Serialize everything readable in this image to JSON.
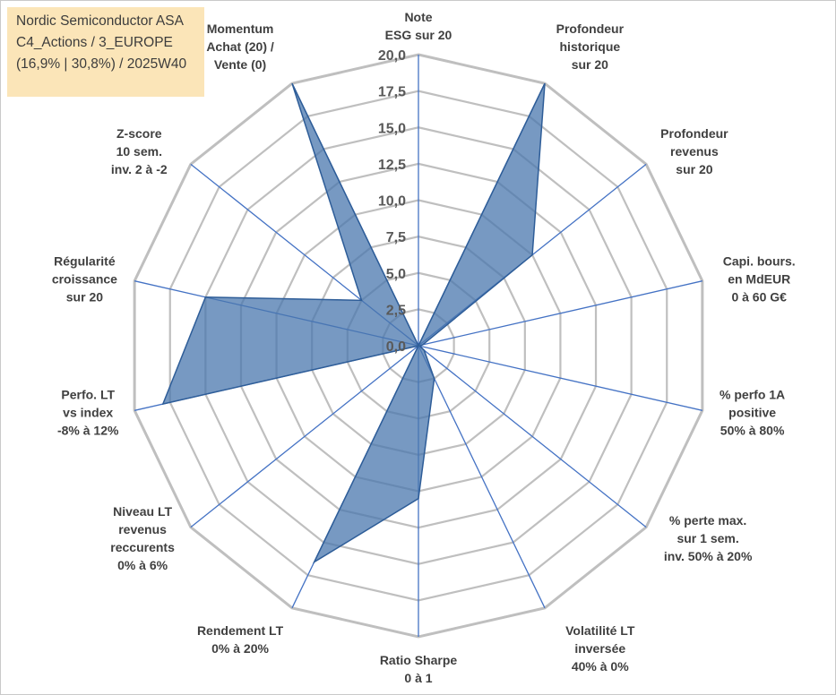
{
  "info": {
    "line1": "Nordic Semiconductor ASA",
    "line2": "C4_Actions / 3_EUROPE",
    "line3": "(16,9% | 30,8%) / 2025W40"
  },
  "chart_data": {
    "type": "radar",
    "r_min": 0,
    "r_max": 20,
    "r_ticks": [
      "0,0",
      "2,5",
      "5,0",
      "7,5",
      "10,0",
      "12,5",
      "15,0",
      "17,5",
      "20,0"
    ],
    "grid": true,
    "categories": [
      [
        "Note",
        "ESG sur 20"
      ],
      [
        "Profondeur",
        "historique",
        "sur 20"
      ],
      [
        "Profondeur",
        "revenus",
        "sur 20"
      ],
      [
        "Capi. bours.",
        "en MdEUR",
        "0 à 60 G€"
      ],
      [
        "% perfo 1A",
        "positive",
        "50% à 80%"
      ],
      [
        "% perte max.",
        "sur 1 sem.",
        "inv. 50% à 20%"
      ],
      [
        "Volatilité LT",
        "inversée",
        "40% à 0%"
      ],
      [
        "Ratio Sharpe",
        "0 à 1"
      ],
      [
        "Rendement LT",
        "0% à 20%"
      ],
      [
        "Niveau LT",
        "revenus",
        "reccurents",
        "0% à 6%"
      ],
      [
        "Perfo. LT",
        "vs index",
        "-8% à 12%"
      ],
      [
        "Régularité",
        "croissance",
        "sur 20"
      ],
      [
        "Z-score",
        "10 sem.",
        "inv. 2 à -2"
      ],
      [
        "Momentum",
        "Achat (20) /",
        "Vente (0)"
      ]
    ],
    "series": [
      {
        "values": [
          0,
          20,
          10,
          0.3,
          0.1,
          0.5,
          2.5,
          10.5,
          16.5,
          0,
          18,
          15,
          5,
          20
        ]
      }
    ]
  },
  "colors": {
    "fill": "#4a77ad",
    "outline": "#2e5d98",
    "spoke": "#4472c4",
    "ring": "#bfbfbf",
    "box": "#fbe5b8"
  }
}
